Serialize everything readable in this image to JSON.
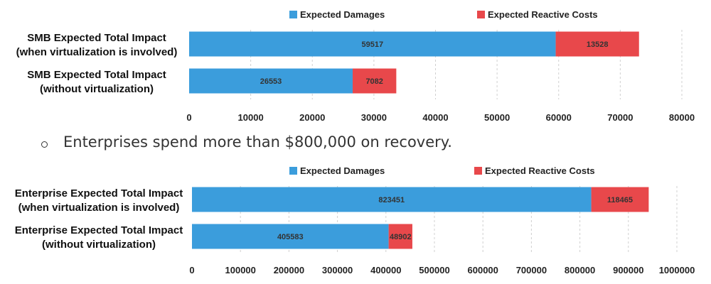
{
  "chart_data": [
    {
      "type": "bar",
      "orientation": "horizontal",
      "stacked": true,
      "categories": [
        "SMB Expected Total Impact\n(when virtualization is involved)",
        "SMB Expected Total Impact\n(without virtualization)"
      ],
      "series": [
        {
          "name": "Expected Damages",
          "values": [
            59517,
            26553
          ],
          "color": "#3b9ddc"
        },
        {
          "name": "Expected Reactive Costs",
          "values": [
            13528,
            7082
          ],
          "color": "#e8484b"
        }
      ],
      "xlim": [
        0,
        80000
      ],
      "xticks": [
        "0",
        "10000",
        "20000",
        "30000",
        "40000",
        "50000",
        "60000",
        "70000",
        "80000"
      ],
      "grid": "vertical-dashed",
      "legend": "top"
    },
    {
      "type": "bar",
      "orientation": "horizontal",
      "stacked": true,
      "categories": [
        "Enterprise Expected Total Impact\n(when virtualization is involved)",
        "Enterprise Expected Total Impact\n(without virtualization)"
      ],
      "series": [
        {
          "name": "Expected Damages",
          "values": [
            823451,
            405583
          ],
          "color": "#3b9ddc"
        },
        {
          "name": "Expected Reactive Costs",
          "values": [
            118465,
            48902
          ],
          "color": "#e8484b"
        }
      ],
      "xlim": [
        0,
        1000000
      ],
      "xticks": [
        "0",
        "100000",
        "200000",
        "300000",
        "400000",
        "500000",
        "600000",
        "700000",
        "800000",
        "900000",
        "1000000"
      ],
      "grid": "vertical-dashed",
      "legend": "top"
    }
  ],
  "bullet": {
    "text": "Enterprises spend more than $800,000 on recovery."
  }
}
